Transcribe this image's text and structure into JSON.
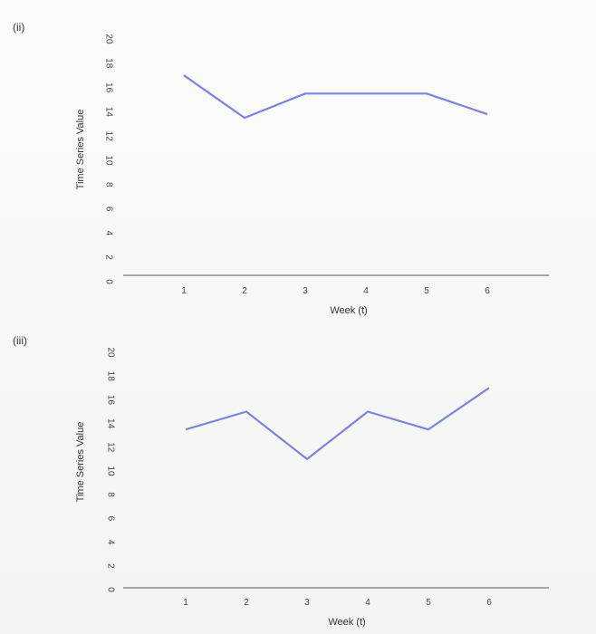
{
  "chart_data": [
    {
      "type": "line",
      "panel_label": "(ii)",
      "xlabel": "Week (t)",
      "ylabel": "Time Series Value",
      "x": [
        1,
        2,
        3,
        4,
        5,
        6
      ],
      "y_ticks": [
        0,
        2,
        4,
        6,
        8,
        10,
        12,
        14,
        16,
        18,
        20
      ],
      "ylim": [
        0,
        20
      ],
      "series": [
        {
          "values": [
            17,
            13.5,
            15.5,
            15.5,
            15.5,
            13.8
          ],
          "color": "#7b84e0"
        }
      ],
      "grid": false
    },
    {
      "type": "line",
      "panel_label": "(iii)",
      "xlabel": "Week (t)",
      "ylabel": "Time Series Value",
      "x": [
        1,
        2,
        3,
        4,
        5,
        6
      ],
      "y_ticks": [
        0,
        2,
        4,
        6,
        8,
        10,
        12,
        14,
        16,
        18,
        20
      ],
      "ylim": [
        0,
        20
      ],
      "series": [
        {
          "values": [
            13.5,
            15,
            11,
            15,
            13.5,
            17
          ],
          "color": "#7b84e0"
        }
      ],
      "grid": false
    }
  ]
}
